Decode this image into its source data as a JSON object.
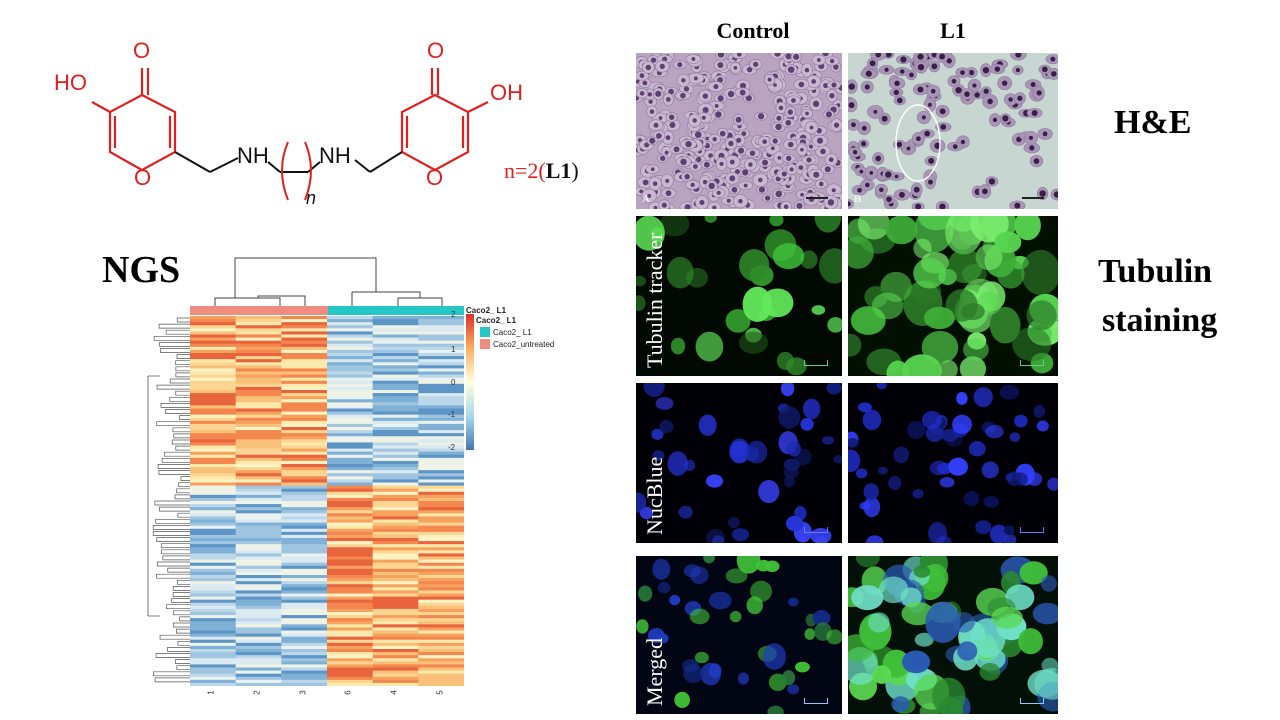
{
  "structure": {
    "ho_left": "HO",
    "ho_right": "OH",
    "o_top_left": "O",
    "o_top_right": "O",
    "o_ring_left": "O",
    "o_ring_right": "O",
    "nh_left": "NH",
    "nh_right": "NH",
    "subscript_n": "n",
    "caption_prefix": "n=2(",
    "caption_bold": "L1",
    "caption_suffix": ")"
  },
  "ngs": {
    "label": "NGS",
    "annotation_title": "Caco2_ L1",
    "legend_title": "Caco2_ L1",
    "legend_items": [
      {
        "label": "Caco2_ L1",
        "color": "#25c6c6"
      },
      {
        "label": "Caco2_untreated",
        "color": "#f08c80"
      }
    ],
    "colorbar_ticks": [
      "2",
      "1",
      "0",
      "-1",
      "-2"
    ],
    "colorbar_colors": [
      "#d73027",
      "#fdae61",
      "#ffffe0",
      "#abd9e9",
      "#4575b4"
    ],
    "column_labels": [
      "1",
      "2",
      "3",
      "6",
      "4",
      "5"
    ]
  },
  "imaging": {
    "col_control": "Control",
    "col_l1": "L1",
    "he_label": "H&E",
    "tubulin_label_1": "Tubulin",
    "tubulin_label_2": "staining",
    "row_tubulin": "Tubulin tracker",
    "row_nucblue": "NucBlue",
    "row_merged": "Merged",
    "letter_a": "A",
    "letter_b": "B"
  }
}
